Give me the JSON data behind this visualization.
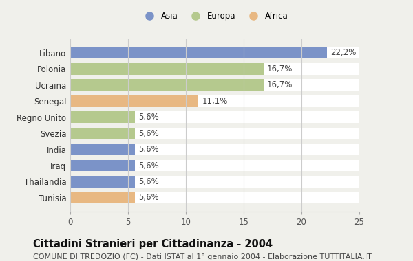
{
  "categories": [
    "Libano",
    "Polonia",
    "Ucraina",
    "Senegal",
    "Regno Unito",
    "Svezia",
    "India",
    "Iraq",
    "Thailandia",
    "Tunisia"
  ],
  "values": [
    22.2,
    16.7,
    16.7,
    11.1,
    5.6,
    5.6,
    5.6,
    5.6,
    5.6,
    5.6
  ],
  "labels": [
    "22,2%",
    "16,7%",
    "16,7%",
    "11,1%",
    "5,6%",
    "5,6%",
    "5,6%",
    "5,6%",
    "5,6%",
    "5,6%"
  ],
  "continent": [
    "Asia",
    "Europa",
    "Europa",
    "Africa",
    "Europa",
    "Europa",
    "Asia",
    "Asia",
    "Asia",
    "Africa"
  ],
  "colors": {
    "Asia": "#7b93c8",
    "Europa": "#b5c98e",
    "Africa": "#e8b882"
  },
  "legend_labels": [
    "Asia",
    "Europa",
    "Africa"
  ],
  "title": "Cittadini Stranieri per Cittadinanza - 2004",
  "subtitle": "COMUNE DI TREDOZIO (FC) - Dati ISTAT al 1° gennaio 2004 - Elaborazione TUTTITALIA.IT",
  "xlim": [
    0,
    25
  ],
  "xticks": [
    0,
    5,
    10,
    15,
    20,
    25
  ],
  "background_color": "#f0f0eb",
  "chart_bg": "#ffffff",
  "bar_height": 0.72,
  "grid_color": "#e8e8e8",
  "label_fontsize": 8.5,
  "tick_fontsize": 8.5,
  "title_fontsize": 10.5,
  "subtitle_fontsize": 8
}
